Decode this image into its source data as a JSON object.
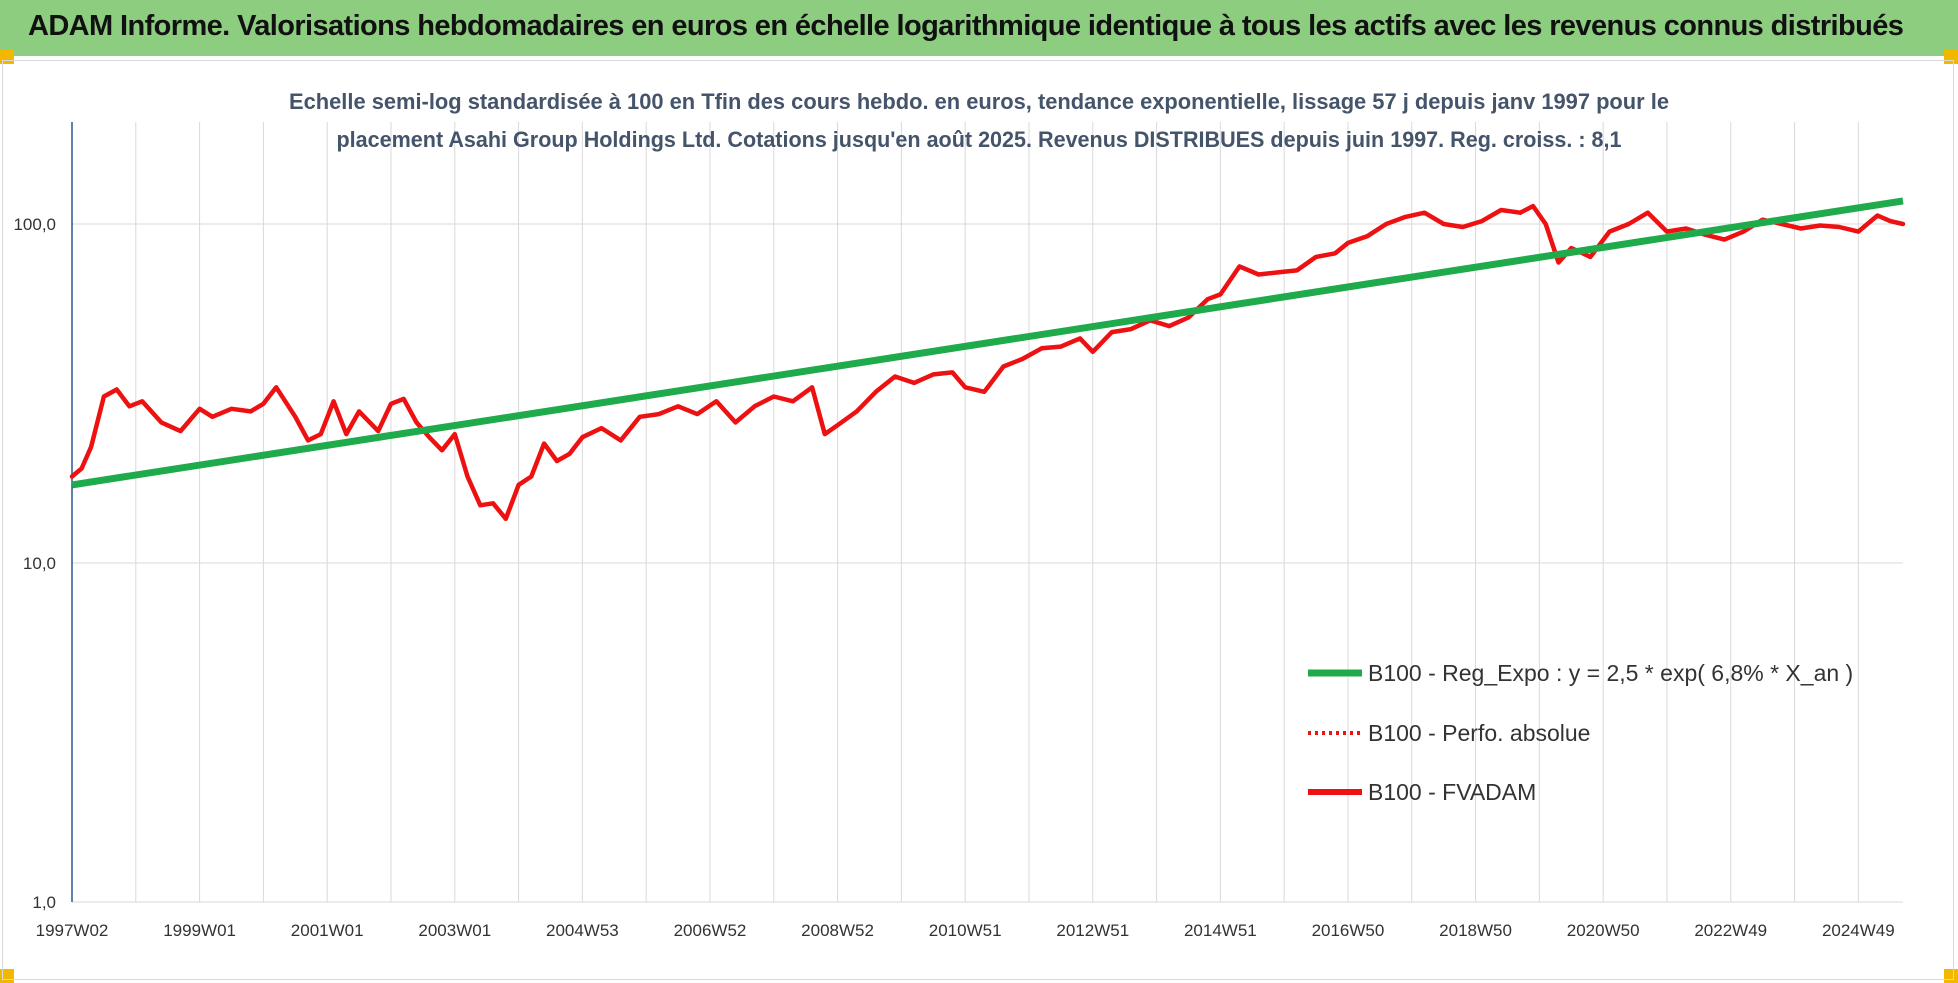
{
  "banner": {
    "title": "ADAM Informe. Valorisations hebdomadaires en euros en échelle logarithmique identique à tous les actifs avec les revenus connus distribués"
  },
  "colors": {
    "banner": "#8ccd7f",
    "corner": "#f2b800",
    "trend": "#1faa4b",
    "fvadam": "#ee1111",
    "perfo": "#ee1111",
    "grid": "#d9d9d9",
    "subtitle": "#44546a"
  },
  "chart_data": {
    "type": "line",
    "subtitle_lines": [
      "Echelle semi-log standardisée à 100 en Tfin des cours hebdo. en euros, tendance exponentielle, lissage 57 j depuis janv 1997 pour le",
      "placement Asahi Group Holdings Ltd. Cotations jusqu'en août 2025. Revenus DISTRIBUES depuis juin 1997. Reg. croiss. : 8,1"
    ],
    "y_scale": "log",
    "ylim": [
      1,
      200
    ],
    "y_ticks": [
      {
        "value": 1,
        "label": "1,0"
      },
      {
        "value": 10,
        "label": "10,0"
      },
      {
        "value": 100,
        "label": "100,0"
      }
    ],
    "xlim": [
      1997.0,
      2025.7
    ],
    "x_ticks": [
      {
        "value": 1997.0,
        "label": "1997W02"
      },
      {
        "value": 1999.0,
        "label": "1999W01"
      },
      {
        "value": 2001.0,
        "label": "2001W01"
      },
      {
        "value": 2003.0,
        "label": "2003W01"
      },
      {
        "value": 2005.0,
        "label": "2004W53"
      },
      {
        "value": 2007.0,
        "label": "2006W52"
      },
      {
        "value": 2009.0,
        "label": "2008W52"
      },
      {
        "value": 2011.0,
        "label": "2010W51"
      },
      {
        "value": 2013.0,
        "label": "2012W51"
      },
      {
        "value": 2015.0,
        "label": "2014W51"
      },
      {
        "value": 2017.0,
        "label": "2016W50"
      },
      {
        "value": 2019.0,
        "label": "2018W50"
      },
      {
        "value": 2021.0,
        "label": "2020W50"
      },
      {
        "value": 2023.0,
        "label": "2022W49"
      },
      {
        "value": 2025.0,
        "label": "2024W49"
      }
    ],
    "grid": true,
    "legend_position": "bottom-right",
    "series": [
      {
        "name": "B100 - Reg_Expo : y = 2,5 * exp( 6,8% *  X_an )",
        "style": "solid-thick",
        "color": "#1faa4b",
        "x": [
          1997.0,
          2025.7
        ],
        "y": [
          17.0,
          117.0
        ]
      },
      {
        "name": "B100 - Perfo. absolue",
        "style": "dotted",
        "color": "#ee1111",
        "x": [],
        "y": []
      },
      {
        "name": "B100 - FVADAM",
        "style": "solid",
        "color": "#ee1111",
        "x": [
          1997.0,
          1997.15,
          1997.3,
          1997.5,
          1997.7,
          1997.9,
          1998.1,
          1998.4,
          1998.7,
          1999.0,
          1999.2,
          1999.5,
          1999.8,
          2000.0,
          2000.2,
          2000.5,
          2000.7,
          2000.9,
          2001.1,
          2001.3,
          2001.5,
          2001.8,
          2002.0,
          2002.2,
          2002.4,
          2002.6,
          2002.8,
          2003.0,
          2003.2,
          2003.4,
          2003.6,
          2003.8,
          2004.0,
          2004.2,
          2004.4,
          2004.6,
          2004.8,
          2005.0,
          2005.3,
          2005.6,
          2005.9,
          2006.2,
          2006.5,
          2006.8,
          2007.1,
          2007.4,
          2007.7,
          2008.0,
          2008.3,
          2008.6,
          2008.8,
          2009.0,
          2009.3,
          2009.6,
          2009.9,
          2010.2,
          2010.5,
          2010.8,
          2011.0,
          2011.3,
          2011.6,
          2011.9,
          2012.2,
          2012.5,
          2012.8,
          2013.0,
          2013.3,
          2013.6,
          2013.9,
          2014.2,
          2014.5,
          2014.8,
          2015.0,
          2015.3,
          2015.6,
          2015.9,
          2016.2,
          2016.5,
          2016.8,
          2017.0,
          2017.3,
          2017.6,
          2017.9,
          2018.2,
          2018.5,
          2018.8,
          2019.1,
          2019.4,
          2019.7,
          2019.9,
          2020.1,
          2020.3,
          2020.5,
          2020.8,
          2021.1,
          2021.4,
          2021.7,
          2022.0,
          2022.3,
          2022.6,
          2022.9,
          2023.2,
          2023.5,
          2023.8,
          2024.1,
          2024.4,
          2024.7,
          2025.0,
          2025.3,
          2025.5,
          2025.7
        ],
        "y": [
          18.0,
          19.0,
          22.0,
          31.0,
          32.5,
          29.0,
          30.0,
          26.0,
          24.5,
          28.5,
          27.0,
          28.5,
          28.0,
          29.5,
          33.0,
          27.0,
          23.0,
          24.0,
          30.0,
          24.0,
          28.0,
          24.5,
          29.5,
          30.5,
          26.0,
          23.5,
          21.5,
          24.0,
          18.0,
          14.8,
          15.0,
          13.5,
          17.0,
          18.0,
          22.5,
          20.0,
          21.0,
          23.5,
          25.0,
          23.0,
          27.0,
          27.5,
          29.0,
          27.5,
          30.0,
          26.0,
          29.0,
          31.0,
          30.0,
          33.0,
          24.0,
          25.5,
          28.0,
          32.0,
          35.5,
          34.0,
          36.0,
          36.5,
          33.0,
          32.0,
          38.0,
          40.0,
          43.0,
          43.5,
          46.0,
          42.0,
          48.0,
          49.0,
          52.0,
          50.0,
          53.0,
          60.0,
          62.0,
          75.0,
          71.0,
          72.0,
          73.0,
          80.0,
          82.0,
          88.0,
          92.0,
          100.0,
          105.0,
          108.0,
          100.0,
          98.0,
          102.0,
          110.0,
          108.0,
          113.0,
          100.0,
          77.0,
          85.0,
          80.0,
          95.0,
          100.0,
          108.0,
          95.0,
          97.0,
          93.0,
          90.0,
          95.0,
          103.0,
          100.0,
          97.0,
          99.0,
          98.0,
          95.0,
          106.0,
          102.0,
          100.0
        ]
      }
    ]
  }
}
